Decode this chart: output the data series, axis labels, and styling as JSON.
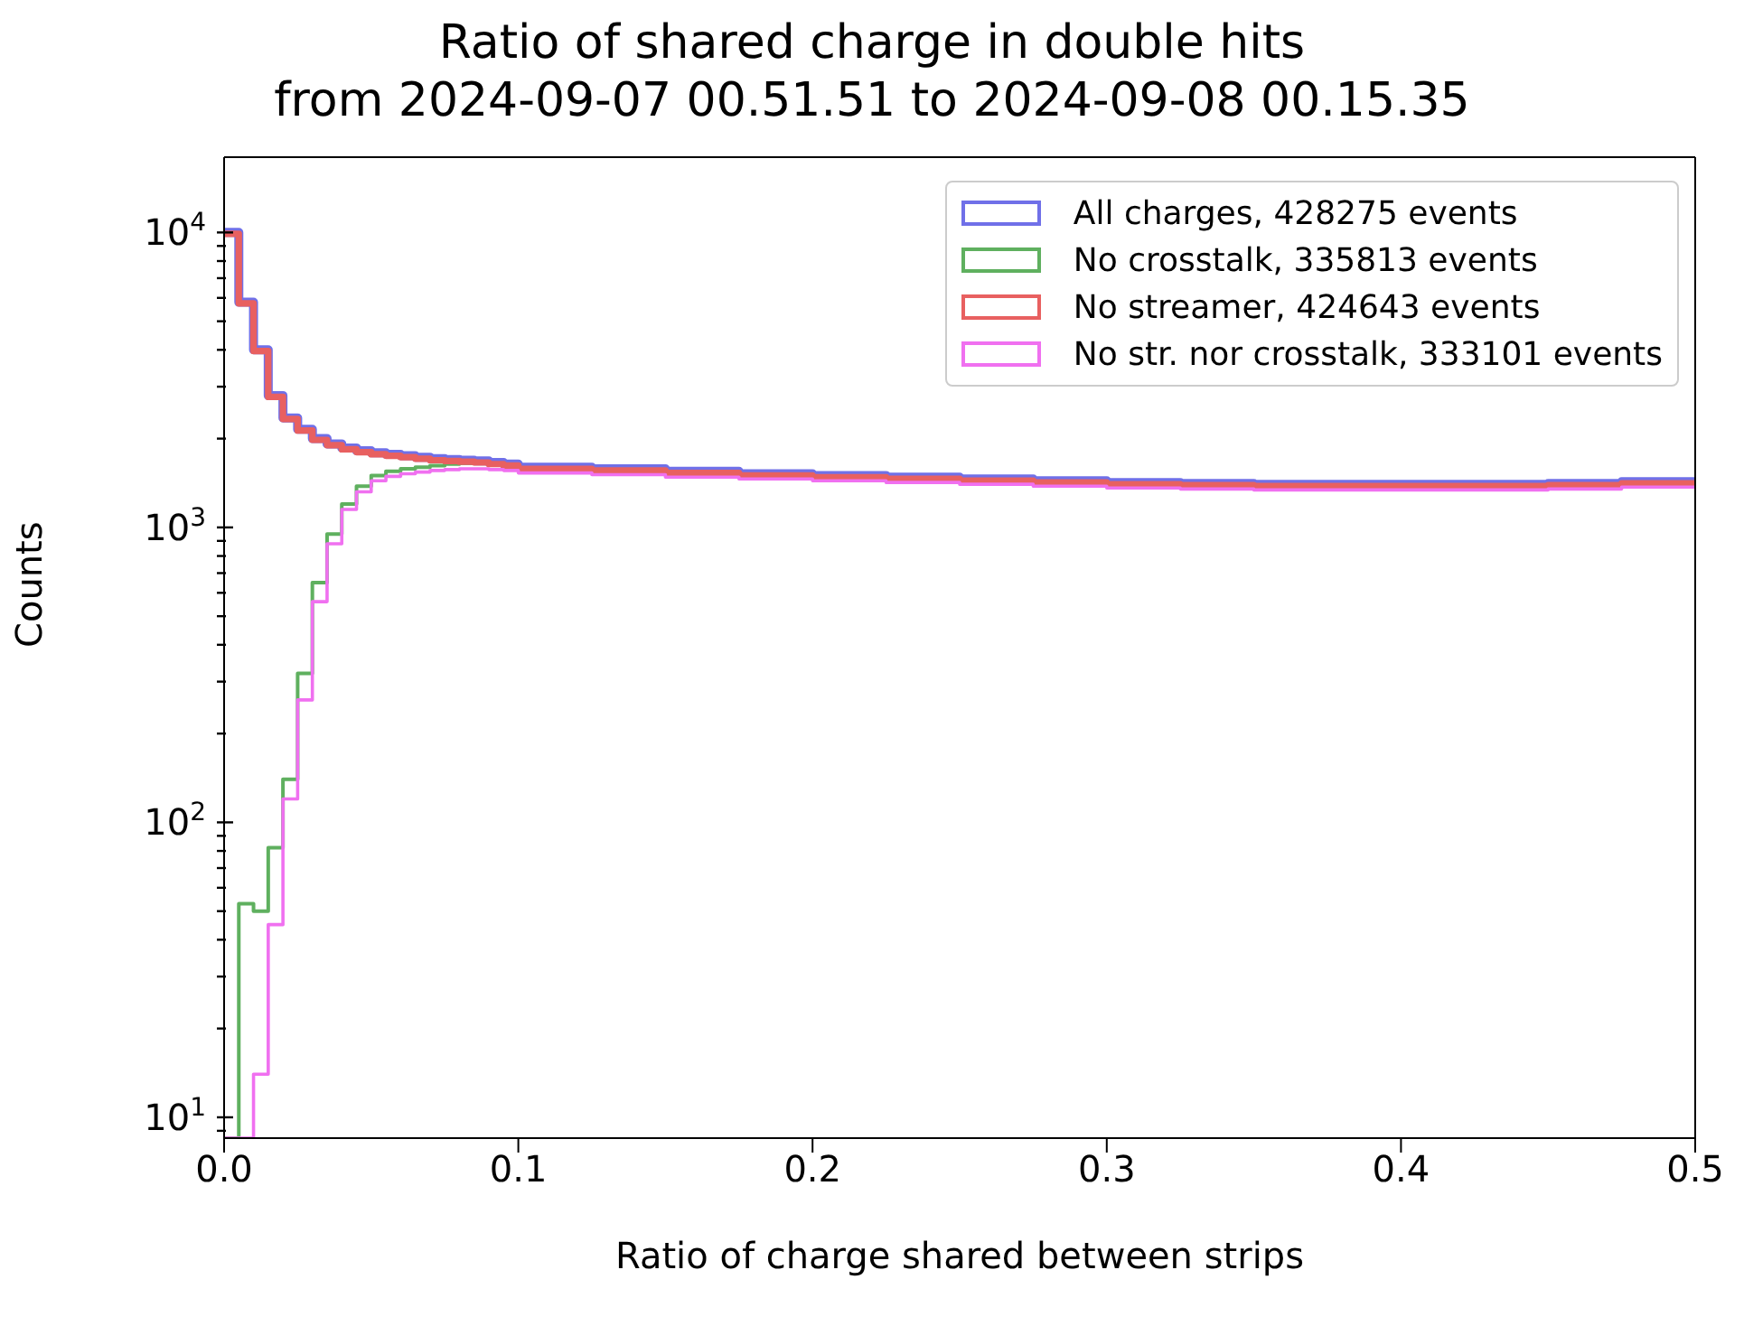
{
  "chart_data": {
    "type": "histogram",
    "title": "Ratio of shared charge in double hits",
    "subtitle": "from 2024-09-07 00.51.51 to 2024-09-08 00.15.35",
    "xlabel": "Ratio of charge shared between strips",
    "ylabel": "Counts",
    "bins": [
      0,
      0.005,
      0.01,
      0.015,
      0.02,
      0.025,
      0.03,
      0.035,
      0.04,
      0.045,
      0.05,
      0.055,
      0.06,
      0.065,
      0.07,
      0.075,
      0.08,
      0.085,
      0.09,
      0.095,
      0.1,
      0.125,
      0.15,
      0.175,
      0.2,
      0.225,
      0.25,
      0.275,
      0.3,
      0.325,
      0.35,
      0.375,
      0.4,
      0.425,
      0.45,
      0.475,
      0.5
    ],
    "series": [
      {
        "name": "All charges, 428275 events",
        "color": "#7070e8",
        "values": [
          10000,
          5800,
          4000,
          2800,
          2350,
          2150,
          2000,
          1920,
          1860,
          1820,
          1790,
          1770,
          1750,
          1730,
          1710,
          1700,
          1690,
          1680,
          1660,
          1640,
          1600,
          1580,
          1550,
          1520,
          1500,
          1480,
          1460,
          1440,
          1420,
          1410,
          1400,
          1400,
          1400,
          1400,
          1410,
          1430
        ]
      },
      {
        "name": "No crosstalk, 335813 events",
        "color": "#5fb05f",
        "values": [
          null,
          53,
          50,
          82,
          140,
          320,
          650,
          950,
          1200,
          1380,
          1500,
          1550,
          1580,
          1600,
          1620,
          1640,
          1650,
          1650,
          1640,
          1630,
          1590,
          1570,
          1540,
          1510,
          1490,
          1470,
          1450,
          1430,
          1410,
          1400,
          1390,
          1390,
          1390,
          1390,
          1400,
          1420
        ]
      },
      {
        "name": "No streamer, 424643 events",
        "color": "#e86060",
        "values": [
          9900,
          5750,
          3960,
          2770,
          2330,
          2130,
          1980,
          1900,
          1840,
          1800,
          1770,
          1750,
          1730,
          1710,
          1690,
          1680,
          1670,
          1660,
          1640,
          1620,
          1580,
          1560,
          1530,
          1500,
          1480,
          1460,
          1440,
          1420,
          1400,
          1390,
          1380,
          1380,
          1380,
          1380,
          1390,
          1410
        ]
      },
      {
        "name": "No str. nor crosstalk, 333101 events",
        "color": "#f070f0",
        "values": [
          null,
          null,
          14,
          45,
          120,
          260,
          560,
          880,
          1150,
          1320,
          1440,
          1490,
          1520,
          1540,
          1560,
          1570,
          1580,
          1580,
          1570,
          1560,
          1530,
          1510,
          1480,
          1460,
          1440,
          1420,
          1400,
          1380,
          1360,
          1350,
          1340,
          1340,
          1340,
          1340,
          1350,
          1370
        ]
      }
    ],
    "xlim": [
      0,
      0.5
    ],
    "xticks": [
      {
        "value": 0,
        "label": "0.0"
      },
      {
        "value": 0.1,
        "label": "0.1"
      },
      {
        "value": 0.2,
        "label": "0.2"
      },
      {
        "value": 0.3,
        "label": "0.3"
      },
      {
        "value": 0.4,
        "label": "0.4"
      },
      {
        "value": 0.5,
        "label": "0.5"
      }
    ],
    "ylim": [
      8.5,
      18000
    ],
    "yticks": [
      {
        "value": 9,
        "label": null
      },
      {
        "value": 10,
        "label": "10$^{1}$"
      },
      {
        "value": 20,
        "label": null
      },
      {
        "value": 30,
        "label": null
      },
      {
        "value": 40,
        "label": null
      },
      {
        "value": 50,
        "label": null
      },
      {
        "value": 60,
        "label": null
      },
      {
        "value": 70,
        "label": null
      },
      {
        "value": 80,
        "label": null
      },
      {
        "value": 90,
        "label": null
      },
      {
        "value": 100,
        "label": "10$^{2}$"
      },
      {
        "value": 200,
        "label": null
      },
      {
        "value": 300,
        "label": null
      },
      {
        "value": 400,
        "label": null
      },
      {
        "value": 500,
        "label": null
      },
      {
        "value": 600,
        "label": null
      },
      {
        "value": 700,
        "label": null
      },
      {
        "value": 800,
        "label": null
      },
      {
        "value": 900,
        "label": null
      },
      {
        "value": 1000,
        "label": "10$^{3}$"
      },
      {
        "value": 2000,
        "label": null
      },
      {
        "value": 3000,
        "label": null
      },
      {
        "value": 4000,
        "label": null
      },
      {
        "value": 5000,
        "label": null
      },
      {
        "value": 6000,
        "label": null
      },
      {
        "value": 7000,
        "label": null
      },
      {
        "value": 8000,
        "label": null
      },
      {
        "value": 9000,
        "label": null
      },
      {
        "value": 10000,
        "label": "10$^{4}$"
      }
    ],
    "log": true,
    "legend": "top right"
  }
}
